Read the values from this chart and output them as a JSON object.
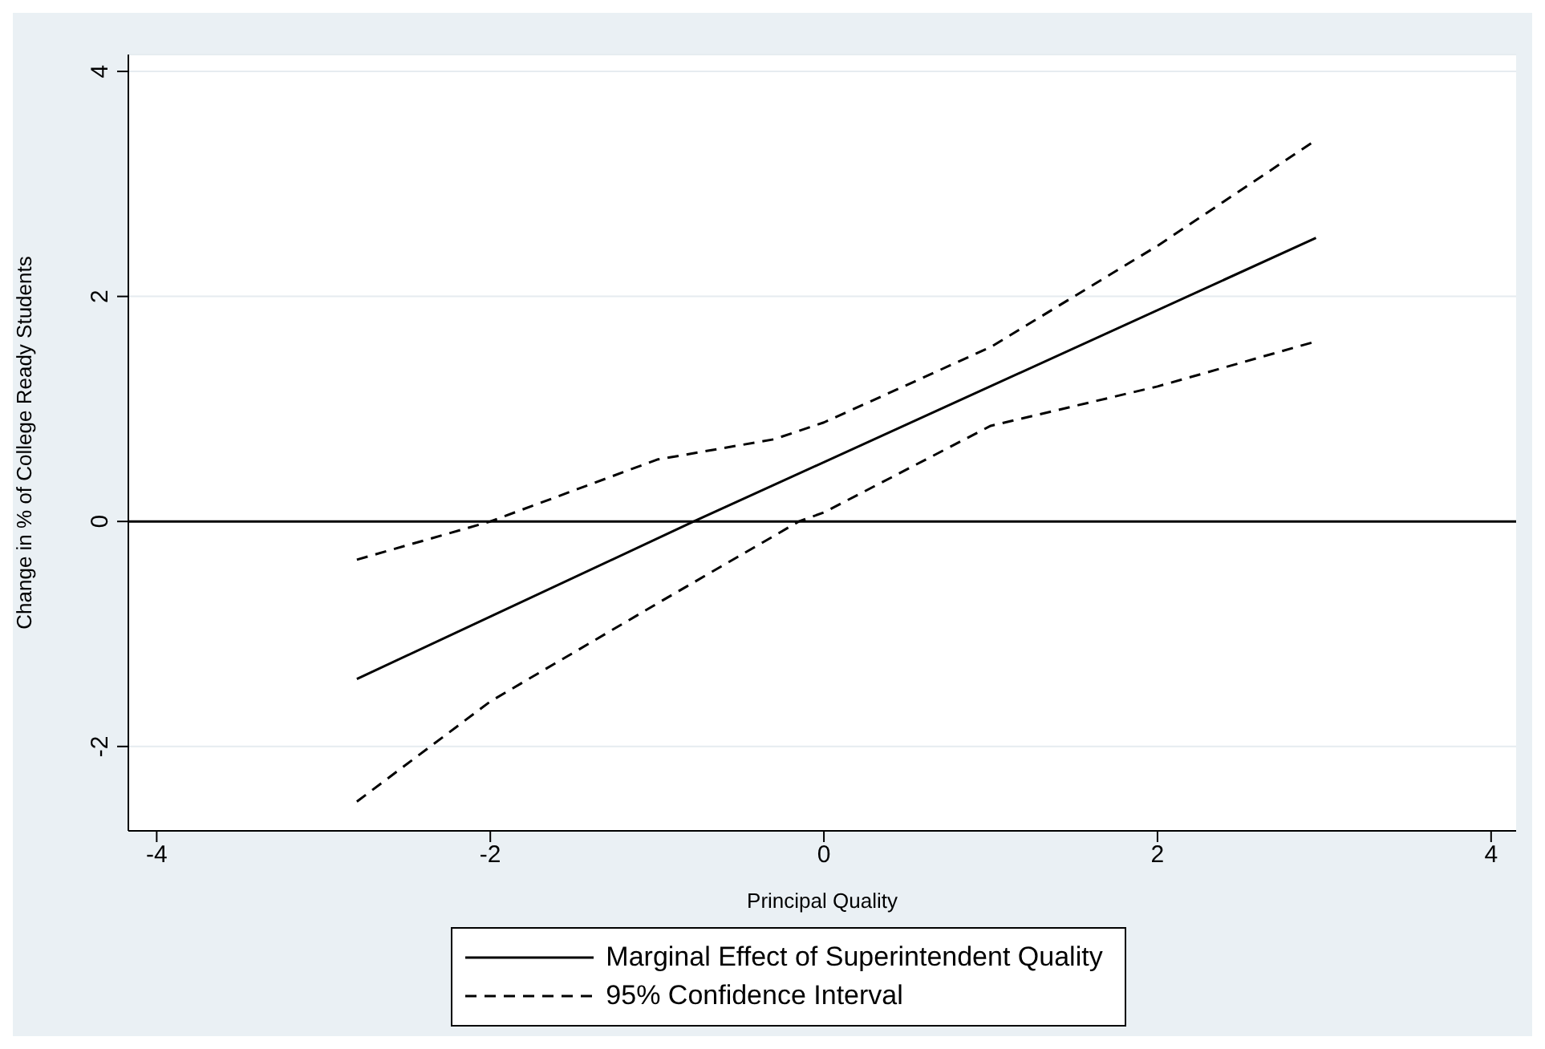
{
  "chart_data": {
    "type": "line",
    "xlabel": "Principal Quality",
    "ylabel": "Change in % of College Ready Students",
    "series": [
      {
        "name": "Marginal Effect of Superintendent Quality",
        "color": "#000000",
        "line_style": "solid",
        "x": [
          -2.8,
          -0.78,
          2.95
        ],
        "values": [
          -1.4,
          0,
          2.52
        ]
      },
      {
        "name": "95% Confidence Interval",
        "color": "#000000",
        "line_style": "dashed",
        "x": [
          -2.8,
          -2,
          -1,
          -0.3,
          0,
          1,
          2,
          2.95
        ],
        "values": [
          -0.34,
          0,
          0.55,
          0.73,
          0.88,
          1.55,
          2.45,
          3.39
        ]
      },
      {
        "color": "#000000",
        "line_style": "dashed",
        "x": [
          -2.8,
          -2,
          -1,
          -0.15,
          0,
          1,
          2,
          2.95
        ],
        "values": [
          -2.49,
          -1.6,
          -0.73,
          0,
          0.08,
          0.85,
          1.2,
          1.6
        ]
      }
    ],
    "xlim": [
      -4.17,
      4.15
    ],
    "xticks": [
      -4,
      -2,
      0,
      2,
      4
    ],
    "ylim": [
      -2.75,
      4.15
    ],
    "yticks": [
      -2,
      0,
      2,
      4
    ],
    "ref_lines": [
      {
        "axis": "y",
        "value": 0,
        "color": "#000000"
      }
    ],
    "grid": "y",
    "legend": "bottom",
    "marker": "none"
  }
}
